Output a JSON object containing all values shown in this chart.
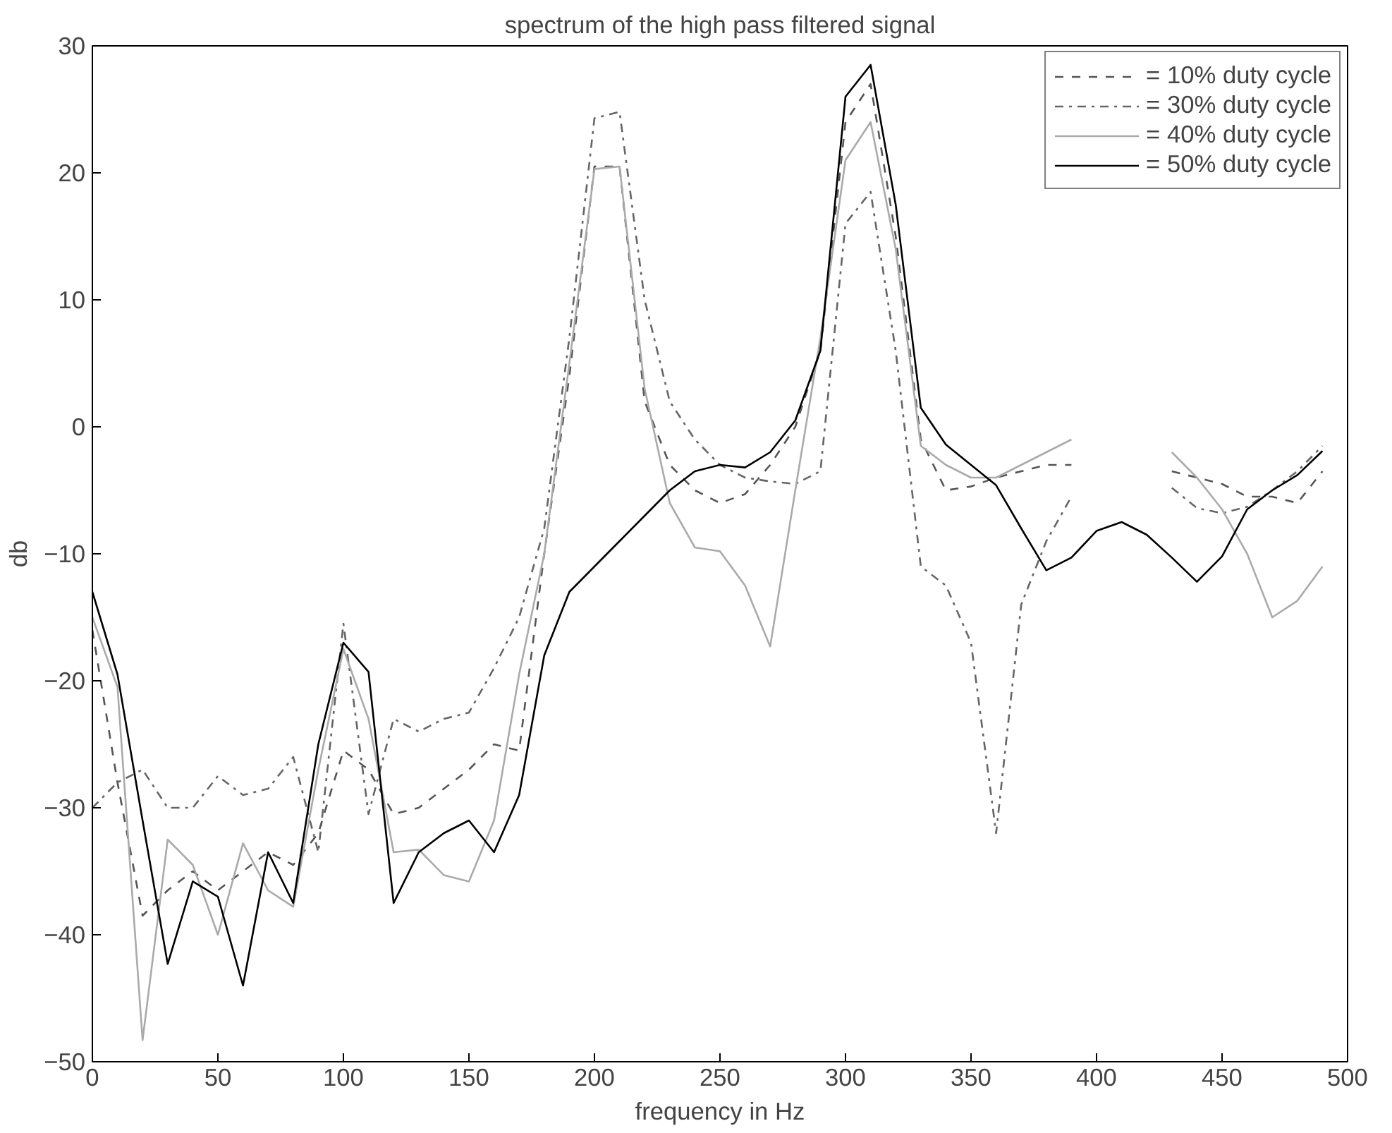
{
  "chart_data": {
    "type": "line",
    "title": "spectrum of the high pass filtered signal",
    "xlabel": "frequency in Hz",
    "ylabel": "db",
    "x": [
      0,
      10,
      20,
      30,
      40,
      50,
      60,
      70,
      80,
      90,
      100,
      110,
      120,
      130,
      140,
      150,
      160,
      170,
      180,
      190,
      200,
      210,
      220,
      230,
      240,
      250,
      260,
      270,
      280,
      290,
      300,
      310,
      320,
      330,
      340,
      350,
      360,
      370,
      380,
      390,
      400,
      410,
      420,
      430,
      440,
      450,
      460,
      470,
      480,
      490
    ],
    "xlim": [
      0,
      500
    ],
    "xticks": [
      0,
      50,
      100,
      150,
      200,
      250,
      300,
      350,
      400,
      450,
      500
    ],
    "ylim": [
      -50,
      30
    ],
    "yticks": [
      -50,
      -40,
      -30,
      -20,
      -10,
      0,
      10,
      20,
      30
    ],
    "grid": false,
    "legend": "top right",
    "series": [
      {
        "name": "= 10% duty cycle",
        "color": "#555555",
        "line_style": "dashed",
        "values": [
          -16,
          -28,
          -38.5,
          -36.5,
          -35,
          -36.5,
          -35,
          -33.5,
          -34.5,
          -32,
          -25.5,
          -27,
          -30.5,
          -30,
          -28.5,
          -27,
          -25,
          -25.5,
          -10,
          4,
          20.5,
          20.5,
          2,
          -3,
          -5,
          -6,
          -5.3,
          -3,
          0,
          6,
          24,
          27,
          15,
          -1,
          -5,
          -4.7,
          -4,
          -3.5,
          -3,
          -3,
          null,
          null,
          null,
          -3.5,
          -4,
          -4.5,
          -5.5,
          -5.5,
          -6,
          -3.5
        ]
      },
      {
        "name": "= 30% duty cycle",
        "color": "#666666",
        "line_style": "dashdot",
        "values": [
          -30,
          -28,
          -27,
          -30,
          -30,
          -27.5,
          -29,
          -28.5,
          -26,
          -33.5,
          -15.5,
          -30.5,
          -23,
          -24,
          -23,
          -22.5,
          -19,
          -15,
          -8,
          7,
          24.3,
          24.8,
          10,
          2,
          -1,
          -3,
          -4,
          -4.3,
          -4.5,
          -3.5,
          16,
          18.5,
          6,
          -11,
          -12.5,
          -17,
          -32,
          -14,
          -9,
          -5.5,
          null,
          null,
          null,
          -4.8,
          -6.4,
          -6.8,
          -6.3,
          -5,
          -3.5,
          -1.5
        ]
      },
      {
        "name": "= 40% duty cycle",
        "color": "#aaaaaa",
        "line_style": "solid",
        "values": [
          -15,
          -20.5,
          -48.3,
          -32.5,
          -34.5,
          -40,
          -32.8,
          -36.5,
          -37.8,
          -27,
          -17.5,
          -23,
          -33.5,
          -33.3,
          -35.3,
          -35.8,
          -31,
          -19.5,
          -10,
          5,
          20.3,
          20.5,
          3,
          -6,
          -9.5,
          -9.8,
          -12.5,
          -17.3,
          -5,
          7,
          21,
          24,
          14,
          -1.5,
          -3,
          -4,
          -4,
          -3,
          -2,
          -1,
          null,
          null,
          null,
          -2,
          -4,
          -6.5,
          -10,
          -15,
          -13.7,
          -11
        ]
      },
      {
        "name": "= 50% duty cycle",
        "color": "#000000",
        "line_style": "solid",
        "values": [
          -13,
          -19.5,
          -31,
          -42.3,
          -35.8,
          -37,
          -44,
          -33.5,
          -37.5,
          -25,
          -17,
          -19.3,
          -37.5,
          -33.5,
          -32,
          -31,
          -33.5,
          -29,
          -18,
          -13,
          -11,
          -9,
          -7,
          -5,
          -3.5,
          -3,
          -3.2,
          -2,
          0.5,
          6,
          26,
          28.5,
          17.5,
          1.5,
          -1.4,
          -3,
          -4.6,
          -8,
          -11.3,
          -10.3,
          -8.2,
          -7.5,
          -8.5,
          -10.3,
          -12.2,
          -10.2,
          -6.5,
          -5,
          -3.8,
          -1.9
        ]
      }
    ]
  }
}
